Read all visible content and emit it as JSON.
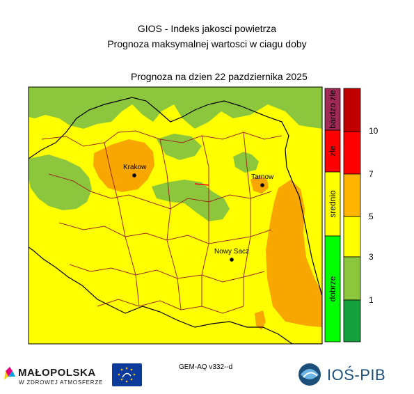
{
  "header": {
    "title": "GIOS - Indeks jakosci powietrza",
    "subtitle": "Prognoza maksymalnej wartosci w ciagu doby",
    "forecast_label": "Prognoza na dzien  22 pazdziernika 2025"
  },
  "cities": [
    {
      "name": "Krakow"
    },
    {
      "name": "Tarnow"
    },
    {
      "name": "Nowy Sacz"
    }
  ],
  "legend": {
    "categories": [
      {
        "label": "bardzo zle",
        "color": "#9e2a55"
      },
      {
        "label": "zle",
        "color": "#ff0000"
      },
      {
        "label": "srednio",
        "color": "#ffff00"
      },
      {
        "label": "dobrze",
        "color": "#00ff00"
      }
    ],
    "scale": [
      {
        "range": [
          10,
          12
        ],
        "color": "#c00000"
      },
      {
        "range": [
          7,
          10
        ],
        "color": "#ff0000"
      },
      {
        "range": [
          5,
          7
        ],
        "color": "#ffb400"
      },
      {
        "range": [
          3,
          5
        ],
        "color": "#ffff00"
      },
      {
        "range": [
          1,
          3
        ],
        "color": "#8cc63c"
      },
      {
        "range": [
          0,
          1
        ],
        "color": "#14a03c"
      }
    ],
    "ticks": [
      "10",
      "7",
      "5",
      "3",
      "1"
    ]
  },
  "colors": {
    "yellow": "#ffff00",
    "orange": "#f7a700",
    "green": "#8cc63c",
    "boundary_black": "#000000",
    "boundary_red": "#9b2a1f"
  },
  "footer": {
    "model": "GEM-AQ v332--d",
    "logo_malopolska": "MAŁOPOLSKA",
    "logo_malopolska_slogan": "W ZDROWEJ ATMOSFERZE",
    "logo_eu_icon": "eu-life-logo",
    "logo_ios": "IOŚ-PIB"
  }
}
